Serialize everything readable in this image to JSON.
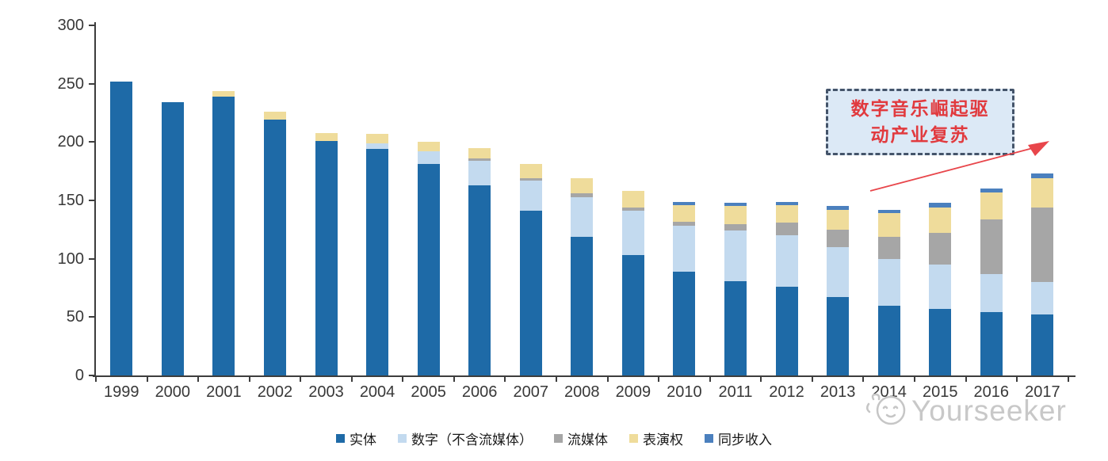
{
  "chart_data": {
    "type": "bar",
    "stacked": true,
    "title": "",
    "xlabel": "",
    "ylabel": "",
    "categories": [
      "1999",
      "2000",
      "2001",
      "2002",
      "2003",
      "2004",
      "2005",
      "2006",
      "2007",
      "2008",
      "2009",
      "2010",
      "2011",
      "2012",
      "2013",
      "2014",
      "2015",
      "2016",
      "2017"
    ],
    "series": [
      {
        "name": "实体",
        "color": "#1e6aa7",
        "values": [
          252,
          234,
          239,
          219,
          201,
          194,
          181,
          163,
          141,
          119,
          103,
          89,
          81,
          76,
          67,
          60,
          57,
          54,
          52
        ]
      },
      {
        "name": "数字（不含流媒体）",
        "color": "#c3daef",
        "values": [
          0,
          0,
          0,
          0,
          0,
          5,
          11,
          21,
          26,
          34,
          38,
          39,
          43,
          44,
          43,
          40,
          38,
          33,
          28
        ]
      },
      {
        "name": "流媒体",
        "color": "#a6a6a6",
        "values": [
          0,
          0,
          0,
          0,
          0,
          0,
          0,
          2,
          2,
          3,
          3,
          4,
          6,
          11,
          15,
          19,
          27,
          47,
          64
        ]
      },
      {
        "name": "表演权",
        "color": "#efdc9b",
        "values": [
          0,
          0,
          5,
          7,
          7,
          8,
          8,
          9,
          12,
          13,
          14,
          14,
          15,
          15,
          17,
          20,
          22,
          23,
          25
        ]
      },
      {
        "name": "同步收入",
        "color": "#4b80be",
        "values": [
          0,
          0,
          0,
          0,
          0,
          0,
          0,
          0,
          0,
          0,
          0,
          3,
          3,
          3,
          3,
          3,
          4,
          3,
          4
        ]
      }
    ],
    "ylim": [
      0,
      300
    ],
    "y_ticks": [
      0,
      50,
      100,
      150,
      200,
      250,
      300
    ],
    "grid": false,
    "legend_position": "bottom"
  },
  "annotation": {
    "line1": "数字音乐崛起驱",
    "line2": "动产业复苏",
    "text_color": "#e13a3e",
    "box_fill": "#dce9f6",
    "box_border": "#44546a",
    "arrow_color": "#e8464b"
  },
  "watermark": {
    "text": "Yourseeker",
    "logo": "cat-logo",
    "color": "#c8c8c8"
  },
  "colors": {
    "axis": "#3d3d3d",
    "tick_label": "#383838"
  }
}
